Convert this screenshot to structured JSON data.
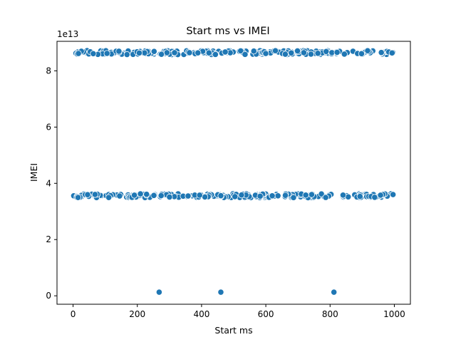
{
  "chart_data": {
    "type": "scatter",
    "title": "Start ms vs IMEI",
    "xlabel": "Start ms",
    "ylabel": "IMEI",
    "y_offset_label": "1e13",
    "xlim": [
      -50,
      1050
    ],
    "ylim": [
      -0.3,
      9.05
    ],
    "y_scale_factor": 10000000000000.0,
    "x_ticks": [
      0,
      200,
      400,
      600,
      800,
      1000
    ],
    "x_tick_labels": [
      "0",
      "200",
      "400",
      "600",
      "800",
      "1000"
    ],
    "y_ticks": [
      0,
      2,
      4,
      6,
      8
    ],
    "y_tick_labels": [
      "0",
      "2",
      "4",
      "6",
      "8"
    ],
    "grid": false,
    "marker_color": "#1f77b4",
    "marker_edge_color": "#ffffff",
    "clusters": [
      {
        "name_level": "upper",
        "y_center": 8.65,
        "y_jitter": 0.07,
        "x_min": 0,
        "x_max": 1000,
        "count": 240
      },
      {
        "name_level": "lower",
        "y_center": 3.56,
        "y_jitter": 0.07,
        "x_min": 0,
        "x_max": 1000,
        "count": 240
      }
    ],
    "outliers": [
      {
        "x": 268,
        "y": 0.13
      },
      {
        "x": 460,
        "y": 0.13
      },
      {
        "x": 812,
        "y": 0.13
      }
    ]
  }
}
